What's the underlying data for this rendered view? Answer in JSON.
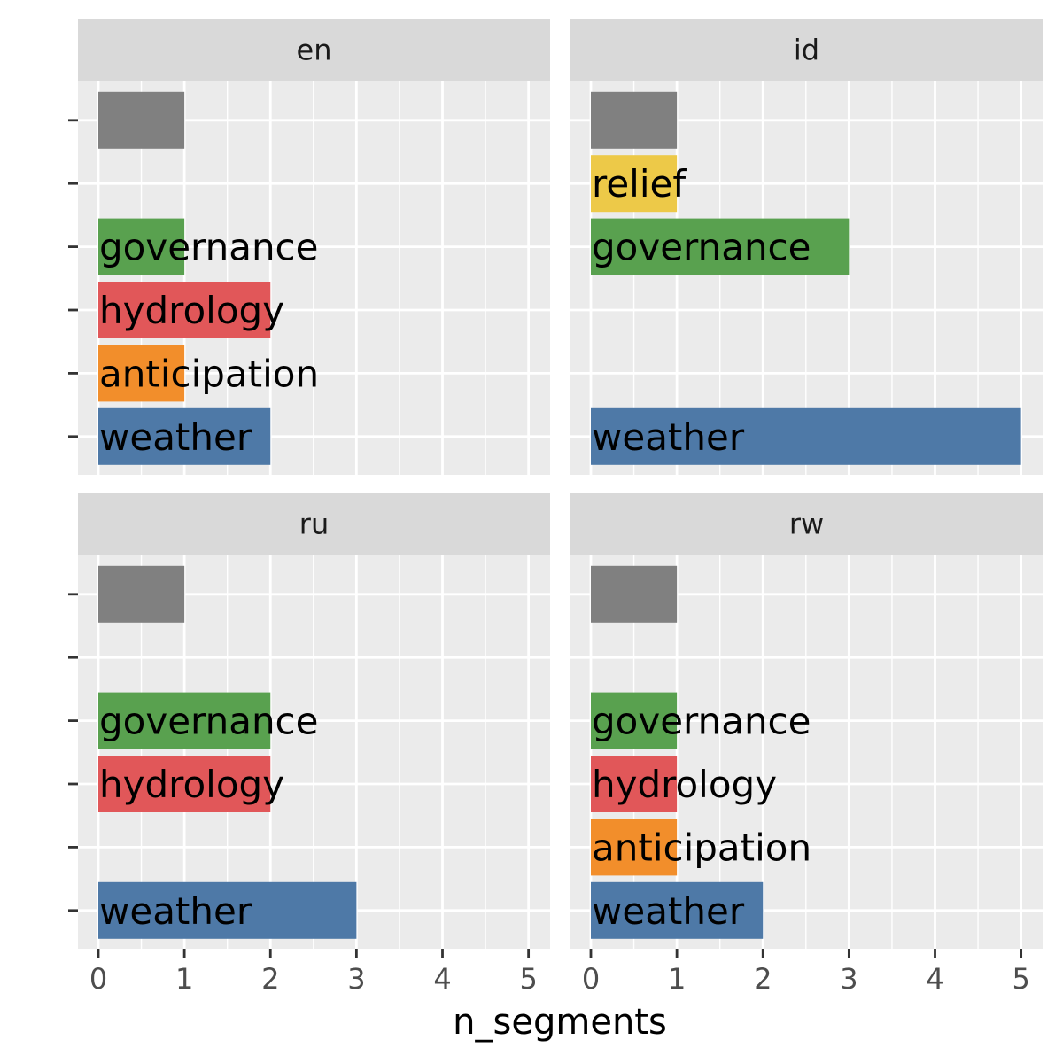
{
  "chart_data": {
    "type": "bar",
    "orientation": "horizontal",
    "layout": "facet_wrap 2x2",
    "xlabel": "n_segments",
    "ylabel": "",
    "xlim": [
      0,
      5
    ],
    "x_ticks": [
      "0",
      "1",
      "2",
      "3",
      "4",
      "5"
    ],
    "grid": true,
    "categories": [
      "",
      "relief",
      "governance",
      "hydrology",
      "anticipation",
      "weather"
    ],
    "colors": {
      "": "#808080",
      "relief": "#EDC948",
      "governance": "#59A14F",
      "hydrology": "#E15759",
      "anticipation": "#F28E2B",
      "weather": "#4E79A7"
    },
    "facets": [
      {
        "name": "en",
        "values": [
          1,
          0,
          1,
          2,
          1,
          2
        ]
      },
      {
        "name": "id",
        "values": [
          1,
          1,
          3,
          0,
          0,
          5
        ]
      },
      {
        "name": "ru",
        "values": [
          1,
          0,
          2,
          2,
          0,
          3
        ]
      },
      {
        "name": "rw",
        "values": [
          1,
          0,
          1,
          1,
          1,
          2
        ]
      }
    ]
  }
}
